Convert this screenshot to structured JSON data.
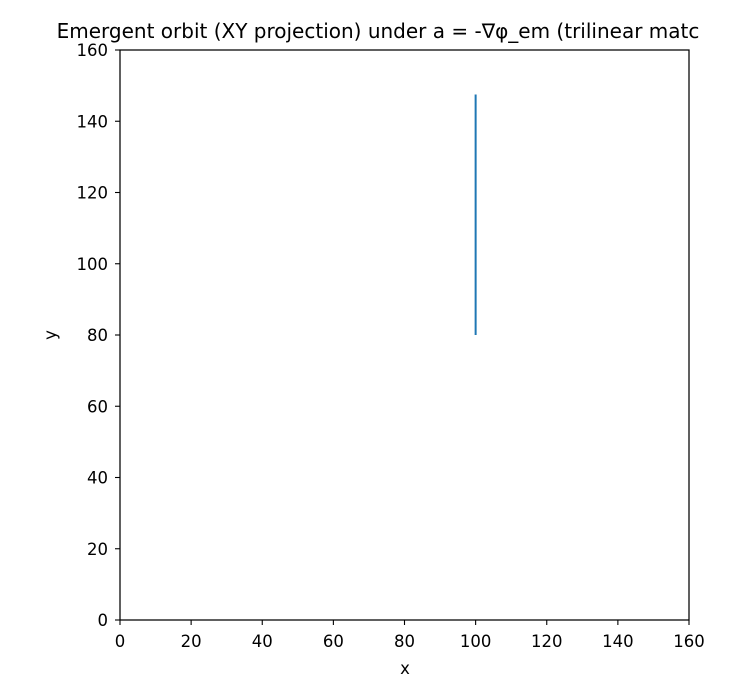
{
  "chart_data": {
    "type": "line",
    "title": "Emergent orbit (XY projection) under a = -∇φ_em (trilinear matc",
    "xlabel": "x",
    "ylabel": "y",
    "xlim": [
      0,
      160
    ],
    "ylim": [
      0,
      160
    ],
    "xticks": [
      0,
      20,
      40,
      60,
      80,
      100,
      120,
      140,
      160
    ],
    "yticks": [
      0,
      20,
      40,
      60,
      80,
      100,
      120,
      140,
      160
    ],
    "grid": false,
    "series": [
      {
        "x": [
          100,
          100
        ],
        "y": [
          80,
          147.5
        ],
        "color": "#1f77b4"
      }
    ]
  }
}
